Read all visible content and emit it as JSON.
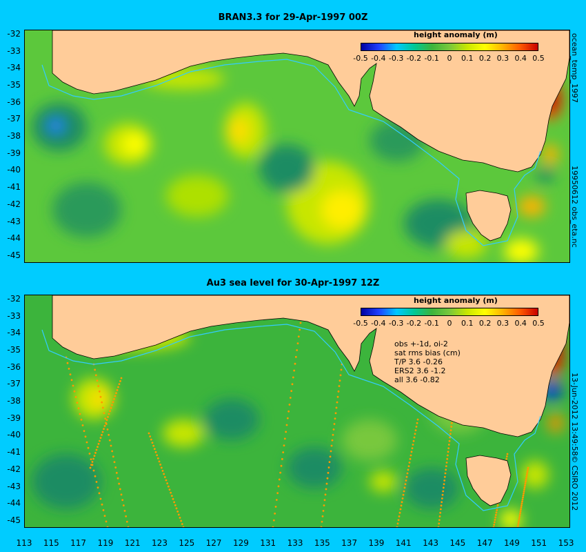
{
  "panels": [
    {
      "title": "BRAN3.3 for 29-Apr-1997 00Z",
      "side_label": "ocean_temp_1997",
      "side_label_lower": "19950612 obs_eta.nc"
    },
    {
      "title": "Au3 sea level  for 30-Apr-1997 12Z",
      "side_label": "13-Jun-2012 13:49:58",
      "side_label_lower": "© CSIRO 2012"
    }
  ],
  "legend": {
    "title": "height anomaly (m)",
    "ticks": [
      "-0.5",
      "-0.4",
      "-0.3",
      "-0.2",
      "-0.1",
      "0",
      "0.1",
      "0.2",
      "0.3",
      "0.4",
      "0.5"
    ],
    "colors": [
      "#0000a0",
      "#2040ff",
      "#00c8ff",
      "#00c896",
      "#3cb43c",
      "#78c83c",
      "#c8e600",
      "#ffff00",
      "#ffb400",
      "#ff5a00",
      "#c80000"
    ]
  },
  "axes": {
    "y_ticks": [
      "-32",
      "-33",
      "-34",
      "-35",
      "-36",
      "-37",
      "-38",
      "-39",
      "-40",
      "-41",
      "-42",
      "-43",
      "-44",
      "-45"
    ],
    "x_ticks": [
      "113",
      "115",
      "117",
      "119",
      "121",
      "123",
      "125",
      "127",
      "129",
      "131",
      "133",
      "135",
      "137",
      "139",
      "141",
      "143",
      "145",
      "147",
      "149",
      "151",
      "153"
    ]
  },
  "stats": {
    "lines": [
      "obs +-1d, oi-2",
      "sat rms bias (cm)",
      "T/P  3.6 -0.26",
      "ERS2  3.6 -1.2",
      "all 3.6 -0.82"
    ]
  },
  "colors": {
    "background": "#00ccff",
    "land": "#ffcc99",
    "ocean_base": "#5cc83c",
    "coast_contour": "#33ccff"
  }
}
